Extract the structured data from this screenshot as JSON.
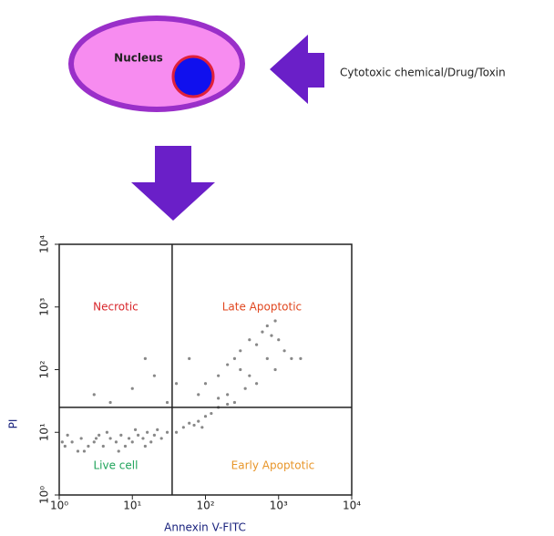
{
  "diagram": {
    "nucleus_label": "Nucleus",
    "agent_label": "Cytotoxic  chemical/Drug/Toxin"
  },
  "chart_data": {
    "type": "scatter",
    "x_label": "Annexin V-FITC",
    "y_label": "PI",
    "log_x": true,
    "log_y": true,
    "xlim": [
      1,
      10000
    ],
    "ylim": [
      1,
      10000
    ],
    "xticks": [
      {
        "value": 1,
        "label": "10⁰"
      },
      {
        "value": 10,
        "label": "10¹"
      },
      {
        "value": 100,
        "label": "10²"
      },
      {
        "value": 1000,
        "label": "10³"
      },
      {
        "value": 10000,
        "label": "10⁴"
      }
    ],
    "yticks": [
      {
        "value": 1,
        "label": "10⁰"
      },
      {
        "value": 10,
        "label": "10¹"
      },
      {
        "value": 100,
        "label": "10²"
      },
      {
        "value": 1000,
        "label": "10³"
      },
      {
        "value": 10000,
        "label": "10⁴"
      }
    ],
    "gates": {
      "x": 35,
      "y": 25
    },
    "quadrants": [
      {
        "label": "Necrotic",
        "color": "#d8262b"
      },
      {
        "label": "Late Apoptotic",
        "color": "#e0461e"
      },
      {
        "label": "Live cell",
        "color": "#1fa35a"
      },
      {
        "label": "Early Apoptotic",
        "color": "#e8962a"
      }
    ],
    "color": "#888888",
    "x": [
      1.2,
      1.5,
      1.8,
      2,
      2.5,
      3,
      3.5,
      4,
      5,
      6,
      7,
      8,
      9,
      10,
      12,
      14,
      16,
      18,
      20,
      25,
      30,
      1.3,
      2.2,
      4.5,
      6.5,
      11,
      15,
      22,
      40,
      50,
      70,
      90,
      1.1,
      3.2,
      5,
      10,
      20,
      40,
      60,
      80,
      3,
      15,
      30,
      100,
      150,
      200,
      250,
      300,
      400,
      500,
      600,
      700,
      800,
      900,
      1000,
      1200,
      1500,
      300,
      400,
      500,
      200,
      250,
      350,
      150,
      700,
      2000,
      900,
      150,
      120,
      200,
      100,
      80,
      60
    ],
    "values": [
      6,
      7,
      5,
      8,
      6,
      7,
      9,
      6,
      8,
      7,
      9,
      6,
      8,
      7,
      9,
      8,
      10,
      7,
      9,
      8,
      10,
      9,
      5,
      10,
      5,
      11,
      6,
      11,
      10,
      12,
      13,
      12,
      7,
      8,
      30,
      50,
      80,
      60,
      150,
      40,
      40,
      150,
      30,
      60,
      80,
      120,
      150,
      200,
      300,
      250,
      400,
      500,
      350,
      600,
      300,
      200,
      150,
      100,
      80,
      60,
      40,
      30,
      50,
      35,
      150,
      150,
      100,
      25,
      20,
      28,
      18,
      15,
      14
    ]
  }
}
